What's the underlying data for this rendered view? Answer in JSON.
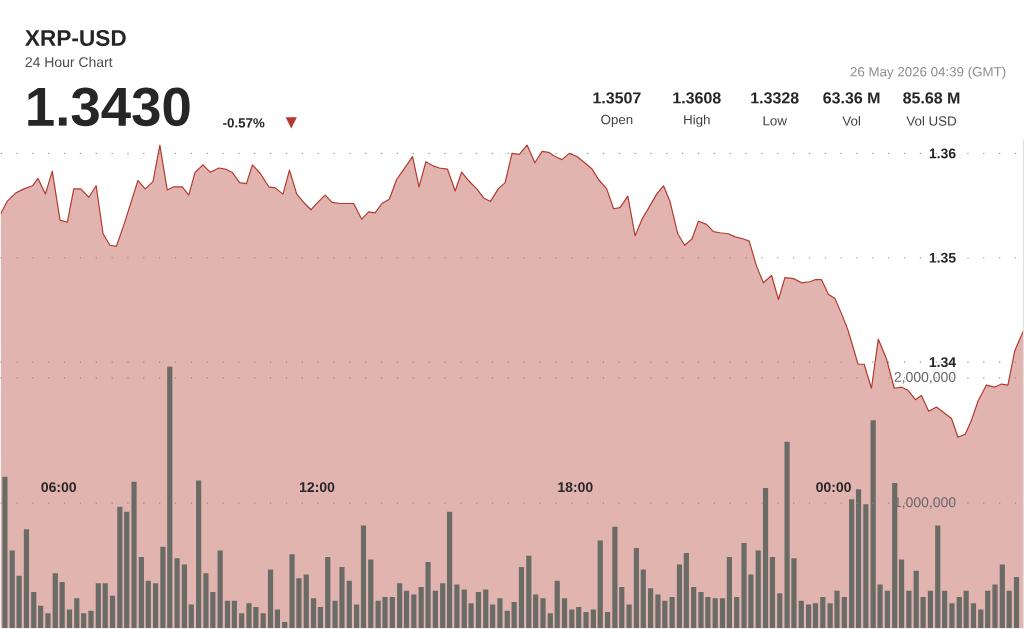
{
  "chart_data": {
    "type": "area",
    "title": "XRP-USD",
    "subtitle": "24 Hour Chart",
    "annotations": [
      "1.3430",
      "-0.57%",
      "▼",
      "1.3507",
      "Open",
      "1.3608",
      "High",
      "1.3328",
      "Low",
      "63.36 M",
      "Vol",
      "85.68 M",
      "Vol USD",
      "26 May 2026 04:39 (GMT)"
    ],
    "xlim": [
      4.65,
      28.41
    ],
    "xticks": [
      {
        "value": 6,
        "label": "06:00"
      },
      {
        "value": 12,
        "label": "12:00"
      },
      {
        "value": 18,
        "label": "18:00"
      },
      {
        "value": 24,
        "label": "00:00"
      }
    ],
    "ylim": [
      1.3145,
      1.3613
    ],
    "yticks": [
      1.34,
      1.35,
      1.36
    ],
    "y2lim": [
      0,
      3900000
    ],
    "y2ticks": [
      {
        "value": 1000000,
        "label": "1,000,000"
      },
      {
        "value": 2000000,
        "label": "2,000,000"
      }
    ],
    "grid": "y",
    "series": [
      {
        "color": "#b23a30",
        "x": [
          4.65,
          4.8,
          5.0,
          5.19,
          5.39,
          5.52,
          5.69,
          5.85,
          6.03,
          6.2,
          6.35,
          6.51,
          6.7,
          6.87,
          7.03,
          7.19,
          7.34,
          7.51,
          7.84,
          8.01,
          8.19,
          8.35,
          8.52,
          8.67,
          8.87,
          9.02,
          9.17,
          9.35,
          9.52,
          9.72,
          9.87,
          10.03,
          10.2,
          10.36,
          10.5,
          10.68,
          10.88,
          11.03,
          11.21,
          11.36,
          11.53,
          11.69,
          11.86,
          12.04,
          12.19,
          12.35,
          12.54,
          12.85,
          13.04,
          13.2,
          13.35,
          13.51,
          13.68,
          13.85,
          14.02,
          14.22,
          14.37,
          14.53,
          14.7,
          14.84,
          15.03,
          15.21,
          15.36,
          15.52,
          15.71,
          15.88,
          16.03,
          16.21,
          16.37,
          16.53,
          16.7,
          16.88,
          17.06,
          17.23,
          17.38,
          17.53,
          17.69,
          17.86,
          18.04,
          18.19,
          18.39,
          18.54,
          18.73,
          18.89,
          19.04,
          19.22,
          19.39,
          19.55,
          19.71,
          19.89,
          20.05,
          20.2,
          20.38,
          20.54,
          20.71,
          20.86,
          21.05,
          21.21,
          21.36,
          21.56,
          21.71,
          21.91,
          22.04,
          22.21,
          22.37,
          22.56,
          22.72,
          22.87,
          23.07,
          23.26,
          23.45,
          23.57,
          23.72,
          23.88,
          24.03,
          24.19,
          24.34,
          24.57,
          24.71,
          24.88,
          25.04,
          25.23,
          25.41,
          25.58,
          25.73,
          25.9,
          26.04,
          26.21,
          26.39,
          26.55,
          26.74,
          26.89,
          27.06,
          27.2,
          27.36,
          27.55,
          27.74,
          27.9,
          28.05,
          28.21,
          28.41
        ],
        "values": [
          1.3542,
          1.3554,
          1.3562,
          1.3566,
          1.3569,
          1.3576,
          1.3561,
          1.3583,
          1.3536,
          1.3534,
          1.3566,
          1.3566,
          1.3558,
          1.3569,
          1.3523,
          1.3512,
          1.3511,
          1.3531,
          1.3574,
          1.3566,
          1.3573,
          1.3608,
          1.3565,
          1.3568,
          1.3568,
          1.356,
          1.3582,
          1.3589,
          1.3582,
          1.3586,
          1.3585,
          1.3582,
          1.3572,
          1.3571,
          1.3589,
          1.3581,
          1.3568,
          1.3567,
          1.3561,
          1.3584,
          1.3561,
          1.3553,
          1.3546,
          1.3554,
          1.356,
          1.3553,
          1.3552,
          1.3552,
          1.3537,
          1.3544,
          1.3543,
          1.3552,
          1.3556,
          1.3575,
          1.3585,
          1.3597,
          1.3568,
          1.3592,
          1.3588,
          1.3586,
          1.3585,
          1.3564,
          1.3582,
          1.3574,
          1.3566,
          1.3557,
          1.3554,
          1.3566,
          1.3572,
          1.36,
          1.3599,
          1.3608,
          1.3591,
          1.3602,
          1.3601,
          1.3597,
          1.3594,
          1.36,
          1.3597,
          1.3592,
          1.3585,
          1.3575,
          1.3566,
          1.3547,
          1.3548,
          1.3559,
          1.3521,
          1.3537,
          1.3548,
          1.3561,
          1.3569,
          1.3554,
          1.3523,
          1.3512,
          1.3518,
          1.3535,
          1.3532,
          1.3525,
          1.3524,
          1.3523,
          1.352,
          1.3518,
          1.3516,
          1.3492,
          1.3476,
          1.3483,
          1.346,
          1.3481,
          1.348,
          1.3476,
          1.3477,
          1.3479,
          1.3479,
          1.3465,
          1.3461,
          1.3446,
          1.343,
          1.3398,
          1.3398,
          1.3375,
          1.3422,
          1.3403,
          1.3375,
          1.3376,
          1.3373,
          1.3364,
          1.3368,
          1.3353,
          1.3357,
          1.3352,
          1.3346,
          1.3328,
          1.3331,
          1.3344,
          1.3363,
          1.3378,
          1.3376,
          1.3379,
          1.3378,
          1.3411,
          1.343
        ]
      },
      {
        "type": "bar",
        "axis": "y2",
        "color": "#6b6b66",
        "x": [
          4.75,
          4.92,
          5.08,
          5.25,
          5.42,
          5.58,
          5.75,
          5.92,
          6.08,
          6.25,
          6.42,
          6.58,
          6.75,
          6.92,
          7.08,
          7.25,
          7.42,
          7.58,
          7.75,
          7.92,
          8.08,
          8.25,
          8.42,
          8.58,
          8.75,
          8.92,
          9.08,
          9.25,
          9.42,
          9.58,
          9.75,
          9.92,
          10.08,
          10.25,
          10.42,
          10.58,
          10.75,
          10.92,
          11.08,
          11.25,
          11.42,
          11.58,
          11.75,
          11.92,
          12.08,
          12.25,
          12.42,
          12.58,
          12.75,
          12.92,
          13.08,
          13.25,
          13.42,
          13.58,
          13.75,
          13.92,
          14.08,
          14.25,
          14.42,
          14.58,
          14.75,
          14.92,
          15.08,
          15.25,
          15.42,
          15.58,
          15.75,
          15.92,
          16.08,
          16.25,
          16.42,
          16.58,
          16.75,
          16.92,
          17.08,
          17.25,
          17.42,
          17.58,
          17.75,
          17.92,
          18.08,
          18.25,
          18.42,
          18.58,
          18.75,
          18.92,
          19.08,
          19.25,
          19.42,
          19.58,
          19.75,
          19.92,
          20.08,
          20.25,
          20.42,
          20.58,
          20.75,
          20.92,
          21.08,
          21.25,
          21.42,
          21.58,
          21.75,
          21.92,
          22.08,
          22.25,
          22.42,
          22.58,
          22.75,
          22.92,
          23.08,
          23.25,
          23.42,
          23.58,
          23.75,
          23.92,
          24.08,
          24.25,
          24.42,
          24.58,
          24.75,
          24.92,
          25.08,
          25.25,
          25.42,
          25.58,
          25.75,
          25.92,
          26.08,
          26.25,
          26.42,
          26.58,
          26.75,
          26.92,
          27.08,
          27.25,
          27.42,
          27.58,
          27.75,
          27.92,
          28.08,
          28.25
        ],
        "values": [
          1210000,
          620000,
          420000,
          790000,
          290000,
          180000,
          120000,
          440000,
          370000,
          150000,
          240000,
          120000,
          140000,
          360000,
          360000,
          260000,
          970000,
          930000,
          1170000,
          570000,
          380000,
          360000,
          650000,
          2090000,
          560000,
          510000,
          190000,
          1180000,
          440000,
          290000,
          620000,
          220000,
          220000,
          120000,
          200000,
          170000,
          120000,
          470000,
          150000,
          50000,
          590000,
          400000,
          430000,
          240000,
          170000,
          570000,
          220000,
          490000,
          380000,
          190000,
          820000,
          550000,
          220000,
          250000,
          250000,
          360000,
          300000,
          270000,
          330000,
          530000,
          300000,
          360000,
          930000,
          350000,
          310000,
          200000,
          290000,
          310000,
          190000,
          240000,
          140000,
          210000,
          490000,
          580000,
          270000,
          240000,
          120000,
          380000,
          240000,
          150000,
          170000,
          130000,
          150000,
          700000,
          130000,
          810000,
          330000,
          190000,
          640000,
          470000,
          320000,
          270000,
          220000,
          250000,
          510000,
          600000,
          330000,
          290000,
          250000,
          240000,
          240000,
          570000,
          250000,
          680000,
          430000,
          620000,
          1120000,
          570000,
          280000,
          1490000,
          560000,
          220000,
          190000,
          200000,
          250000,
          200000,
          300000,
          250000,
          1030000,
          1110000,
          990000,
          1660000,
          350000,
          300000,
          1160000,
          550000,
          300000,
          460000,
          250000,
          300000,
          820000,
          300000,
          200000,
          250000,
          300000,
          200000,
          150000,
          300000,
          350000,
          510000,
          300000,
          410000
        ]
      }
    ]
  }
}
